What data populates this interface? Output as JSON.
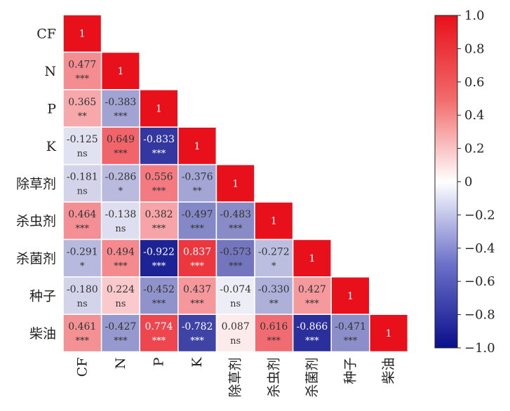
{
  "chart_data": {
    "type": "heatmap",
    "title": "",
    "xlabel": "",
    "ylabel": "",
    "variables": [
      "CF",
      "N",
      "P",
      "K",
      "除草剂",
      "杀虫剂",
      "杀菌剂",
      "种子",
      "柴油"
    ],
    "matrix": [
      [
        1
      ],
      [
        0.477,
        1
      ],
      [
        0.365,
        -0.383,
        1
      ],
      [
        -0.125,
        0.649,
        -0.833,
        1
      ],
      [
        -0.181,
        -0.286,
        0.556,
        -0.376,
        1
      ],
      [
        0.464,
        -0.138,
        0.382,
        -0.497,
        -0.483,
        1
      ],
      [
        -0.291,
        0.494,
        -0.922,
        0.837,
        -0.573,
        -0.272,
        1
      ],
      [
        -0.18,
        0.224,
        -0.452,
        0.437,
        -0.074,
        -0.33,
        0.427,
        1
      ],
      [
        0.461,
        -0.427,
        0.774,
        -0.782,
        0.087,
        0.616,
        -0.866,
        -0.471,
        1
      ]
    ],
    "value_labels": [
      [
        "1"
      ],
      [
        "0.477",
        "1"
      ],
      [
        "0.365",
        "-0.383",
        "1"
      ],
      [
        "-0.125",
        "0.649",
        "-0.833",
        "1"
      ],
      [
        "-0.181",
        "-0.286",
        "0.556",
        "-0.376",
        "1"
      ],
      [
        "0.464",
        "-0.138",
        "0.382",
        "-0.497",
        "-0.483",
        "1"
      ],
      [
        "-0.291",
        "0.494",
        "-0.922",
        "0.837",
        "-0.573",
        "-0.272",
        "1"
      ],
      [
        "-0.180",
        "0.224",
        "-0.452",
        "0.437",
        "-0.074",
        "-0.330",
        "0.427",
        "1"
      ],
      [
        "0.461",
        "-0.427",
        "0.774",
        "-0.782",
        "0.087",
        "0.616",
        "-0.866",
        "-0.471",
        "1"
      ]
    ],
    "significance": [
      [
        ""
      ],
      [
        "***",
        ""
      ],
      [
        "**",
        "***",
        ""
      ],
      [
        "ns",
        "***",
        "***",
        ""
      ],
      [
        "ns",
        "*",
        "***",
        "**",
        ""
      ],
      [
        "***",
        "ns",
        "***",
        "***",
        "***",
        ""
      ],
      [
        "*",
        "***",
        "***",
        "***",
        "***",
        "*",
        ""
      ],
      [
        "ns",
        "ns",
        "***",
        "***",
        "ns",
        "**",
        "***",
        ""
      ],
      [
        "***",
        "***",
        "***",
        "***",
        "ns",
        "***",
        "***",
        "***",
        ""
      ]
    ],
    "colorbar": {
      "range": [
        -1.0,
        1.0
      ],
      "ticks": [
        "1.0",
        "0.8",
        "0.6",
        "0.4",
        "0.2",
        "0",
        "−0.2",
        "−0.4",
        "−0.6",
        "−0.8",
        "−1.0"
      ],
      "colors": {
        "positive": "#e8101a",
        "neutral": "#ffffff",
        "negative": "#0a0f8c"
      }
    },
    "layout": "lower-triangle"
  }
}
